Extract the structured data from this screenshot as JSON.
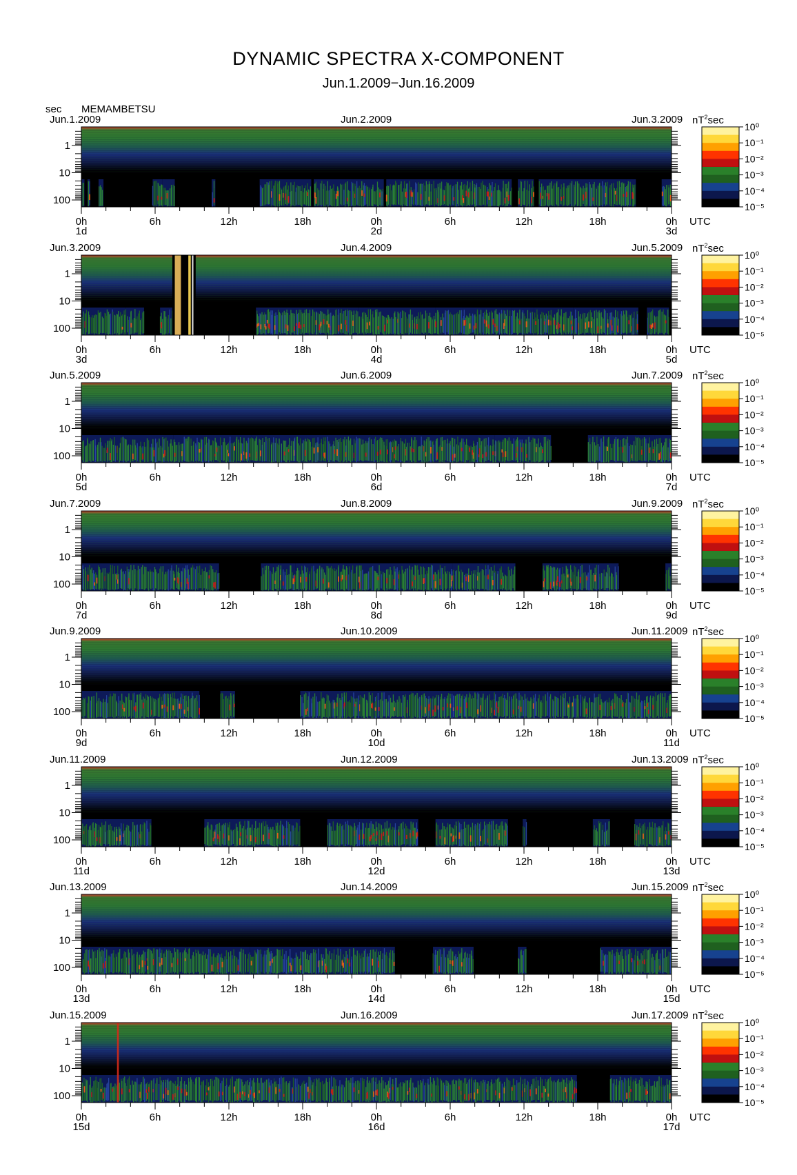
{
  "title": "DYNAMIC SPECTRA X-COMPONENT",
  "subtitle": "Jun.1.2009−Jun.16.2009",
  "yaxis_unit": "sec",
  "station": "MEMAMBETSU",
  "colorbar_unit": "nT²sec",
  "utc_label": "UTC",
  "colorbar_ticks": [
    "10⁰",
    "10⁻¹",
    "10⁻²",
    "10⁻³",
    "10⁻⁴",
    "10⁻⁵"
  ],
  "colors": {
    "background": "#000000",
    "top_band": "#cc3333",
    "green": "#2f8a2f",
    "blue": "#1c2f78",
    "red": "#d42a1a",
    "yellow": "#ffe040"
  },
  "colormap": [
    "#fff3a0",
    "#ffd83a",
    "#ffa000",
    "#ff3300",
    "#c01010",
    "#2f8f2f",
    "#236b23",
    "#1a4aa0",
    "#0e1a55",
    "#000000"
  ],
  "chart_data": {
    "type": "heatmap",
    "yaxis": {
      "label": "sec",
      "ticks": [
        "1",
        "10",
        "100"
      ],
      "scale": "log"
    },
    "xaxis": {
      "ticks": [
        "0h",
        "6h",
        "12h",
        "18h",
        "0h",
        "6h",
        "12h",
        "18h",
        "0h"
      ],
      "label": "UTC"
    },
    "colorbar": {
      "unit": "nT²sec",
      "range": [
        "10⁻⁵",
        "10⁰"
      ],
      "scale": "log"
    },
    "panels": [
      {
        "left_date": "Jun.1.2009",
        "mid_date": "Jun.2.2009",
        "right_date": "Jun.3.2009",
        "day_labels": [
          "1d",
          "2d",
          "3d"
        ],
        "activity": [
          [
            0.05,
            0.25,
            0.4
          ],
          [
            0.5,
            0.7,
            0.6
          ],
          [
            1.4,
            1.8,
            0.5
          ],
          [
            5.8,
            6.6,
            0.9
          ],
          [
            6.6,
            7.6,
            0.5
          ],
          [
            10.6,
            10.9,
            0.3
          ],
          [
            14.5,
            18.7,
            0.4
          ],
          [
            18.9,
            24.6,
            0.45
          ],
          [
            24.8,
            29.3,
            0.4
          ],
          [
            29.3,
            35.0,
            0.45
          ],
          [
            35.5,
            36.8,
            0.4
          ],
          [
            37.2,
            44.3,
            0.55
          ],
          [
            44.3,
            45.1,
            0.5
          ],
          [
            47.2,
            48.0,
            0.5
          ]
        ],
        "bursts": []
      },
      {
        "left_date": "Jun.3.2009",
        "mid_date": "Jun.4.2009",
        "right_date": "Jun.5.2009",
        "day_labels": [
          "3d",
          "4d",
          "5d"
        ],
        "activity": [
          [
            0.05,
            3.6,
            0.55
          ],
          [
            3.6,
            5.1,
            0.4
          ],
          [
            6.4,
            7.5,
            0.5
          ],
          [
            14.2,
            22.5,
            0.75
          ],
          [
            22.5,
            28.8,
            0.45
          ],
          [
            28.8,
            35.0,
            0.55
          ],
          [
            35.0,
            36.8,
            0.45
          ],
          [
            36.8,
            40.0,
            0.5
          ],
          [
            40.0,
            45.3,
            0.5
          ],
          [
            46.0,
            47.8,
            0.6
          ]
        ],
        "bursts": [
          [
            7.6,
            8.1,
            "#f0c060"
          ],
          [
            8.7,
            8.9,
            "#ffdd55"
          ],
          [
            9.0,
            9.1,
            "#ffffff"
          ]
        ],
        "blackout": [
          [
            7.4,
            9.3
          ]
        ]
      },
      {
        "left_date": "Jun.5.2009",
        "mid_date": "Jun.6.2009",
        "right_date": "Jun.7.2009",
        "day_labels": [
          "5d",
          "6d",
          "7d"
        ],
        "activity": [
          [
            0.05,
            7.5,
            0.4
          ],
          [
            7.5,
            13.8,
            0.55
          ],
          [
            13.8,
            14.3,
            0.9
          ],
          [
            14.3,
            22.2,
            0.45
          ],
          [
            22.2,
            33.6,
            0.5
          ],
          [
            33.6,
            36.4,
            0.7
          ],
          [
            36.4,
            38.2,
            0.45
          ],
          [
            41.2,
            46.6,
            0.4
          ],
          [
            46.6,
            48.0,
            0.45
          ]
        ],
        "bursts": []
      },
      {
        "left_date": "Jun.7.2009",
        "mid_date": "Jun.8.2009",
        "right_date": "Jun.9.2009",
        "day_labels": [
          "7d",
          "8d",
          "9d"
        ],
        "activity": [
          [
            0.05,
            9.3,
            0.5
          ],
          [
            9.3,
            11.2,
            0.35
          ],
          [
            14.6,
            17.4,
            0.4
          ],
          [
            17.4,
            30.2,
            0.5
          ],
          [
            30.2,
            32.8,
            0.45
          ],
          [
            32.8,
            35.3,
            0.35
          ],
          [
            37.5,
            39.0,
            0.85
          ],
          [
            39.0,
            43.7,
            0.35
          ],
          [
            47.5,
            48.0,
            0.4
          ]
        ],
        "bursts": []
      },
      {
        "left_date": "Jun.9.2009",
        "mid_date": "Jun.10.2009",
        "right_date": "Jun.11.2009",
        "day_labels": [
          "9d",
          "10d",
          "11d"
        ],
        "activity": [
          [
            0.05,
            6.0,
            0.45
          ],
          [
            6.0,
            9.6,
            0.6
          ],
          [
            11.3,
            12.5,
            0.5
          ],
          [
            17.8,
            27.6,
            0.45
          ],
          [
            27.6,
            32.5,
            0.75
          ],
          [
            32.5,
            38.9,
            0.5
          ],
          [
            38.9,
            45.0,
            0.45
          ],
          [
            45.0,
            48.0,
            0.45
          ]
        ],
        "bursts": []
      },
      {
        "left_date": "Jun.11.2009",
        "mid_date": "Jun.12.2009",
        "right_date": "Jun.13.2009",
        "day_labels": [
          "11d",
          "12d",
          "13d"
        ],
        "activity": [
          [
            0.05,
            1.8,
            0.5
          ],
          [
            1.8,
            5.7,
            0.4
          ],
          [
            10.0,
            17.8,
            0.45
          ],
          [
            20.0,
            22.5,
            0.35
          ],
          [
            22.5,
            27.4,
            0.55
          ],
          [
            28.8,
            34.7,
            0.5
          ],
          [
            35.9,
            36.2,
            0.3
          ],
          [
            41.6,
            43.0,
            0.3
          ],
          [
            45.0,
            48.0,
            0.45
          ]
        ],
        "bursts": []
      },
      {
        "left_date": "Jun.13.2009",
        "mid_date": "Jun.14.2009",
        "right_date": "Jun.15.2009",
        "day_labels": [
          "13d",
          "14d",
          "15d"
        ],
        "activity": [
          [
            0.05,
            4.2,
            0.35
          ],
          [
            4.2,
            8.6,
            0.5
          ],
          [
            8.6,
            13.7,
            0.4
          ],
          [
            13.7,
            16.4,
            0.6
          ],
          [
            16.4,
            20.9,
            0.35
          ],
          [
            20.9,
            24.4,
            0.4
          ],
          [
            24.4,
            25.5,
            0.4
          ],
          [
            28.6,
            31.9,
            0.4
          ],
          [
            35.5,
            36.2,
            0.3
          ],
          [
            42.2,
            43.8,
            0.5
          ],
          [
            43.8,
            48.0,
            0.35
          ]
        ],
        "bursts": []
      },
      {
        "left_date": "Jun.15.2009",
        "mid_date": "Jun.16.2009",
        "right_date": "Jun.17.2009",
        "day_labels": [
          "15d",
          "16d",
          "17d"
        ],
        "activity": [
          [
            0.05,
            3.0,
            0.4
          ],
          [
            3.0,
            8.3,
            0.55
          ],
          [
            8.3,
            15.7,
            0.5
          ],
          [
            15.7,
            24.4,
            0.45
          ],
          [
            24.4,
            27.6,
            0.35
          ],
          [
            27.6,
            33.8,
            0.55
          ],
          [
            33.8,
            37.7,
            0.45
          ],
          [
            37.7,
            40.3,
            0.7
          ],
          [
            43.0,
            48.0,
            0.45
          ]
        ],
        "bursts": [
          [
            2.9,
            3.05,
            "#d42a1a"
          ]
        ]
      }
    ]
  }
}
